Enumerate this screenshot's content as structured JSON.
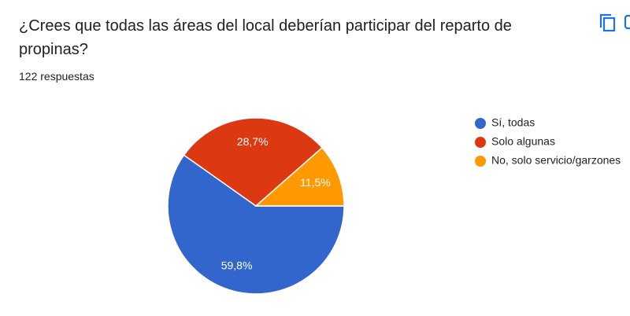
{
  "header": {
    "title": "¿Crees que todas las áreas del local deberían participar del reparto de propinas?",
    "subtitle": "122 respuestas"
  },
  "chart_data": {
    "type": "pie",
    "categories": [
      "Sí, todas",
      "Solo algunas",
      "No, solo servicio/garzones"
    ],
    "values": [
      59.8,
      28.7,
      11.5
    ],
    "value_labels": [
      "59,8%",
      "28,7%",
      "11,5%"
    ],
    "colors": [
      "#3366cc",
      "#dc3912",
      "#ff9900"
    ]
  }
}
